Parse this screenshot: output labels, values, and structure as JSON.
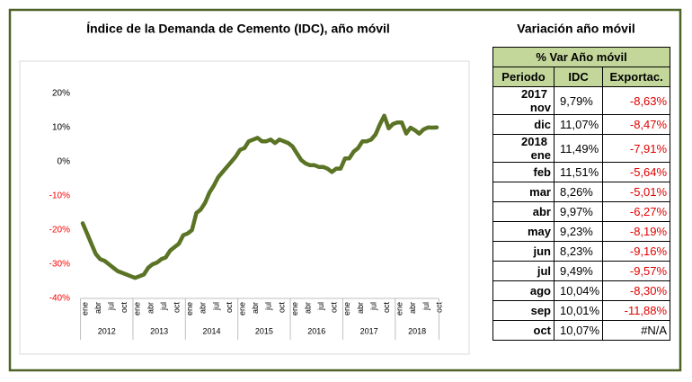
{
  "chart_data": {
    "type": "line",
    "title": "Índice de la Demanda de Cemento (IDC), año móvil",
    "categories": [
      "ene",
      null,
      null,
      "abr",
      null,
      null,
      "jul",
      null,
      null,
      "oct",
      null,
      null,
      "ene",
      null,
      null,
      "abr",
      null,
      null,
      "jul",
      null,
      null,
      "oct",
      null,
      null,
      "ene",
      null,
      null,
      "abr",
      null,
      null,
      "jul",
      null,
      null,
      "oct",
      null,
      null,
      "ene",
      null,
      null,
      "abr",
      null,
      null,
      "jul",
      null,
      null,
      "oct",
      null,
      null,
      "ene",
      null,
      null,
      "abr",
      null,
      null,
      "jul",
      null,
      null,
      "oct",
      null,
      null,
      "ene",
      null,
      null,
      "abr",
      null,
      null,
      "jul",
      null,
      null,
      "oct",
      null,
      null,
      "ene",
      null,
      null,
      "abr",
      null,
      null,
      "jul",
      null,
      null,
      "oct"
    ],
    "years": [
      "2012",
      "2013",
      "2014",
      "2015",
      "2016",
      "2017",
      "2018"
    ],
    "values": [
      -18,
      -21,
      -24,
      -27,
      -28.5,
      -29,
      -30,
      -31,
      -32,
      -32.5,
      -33,
      -33.5,
      -34,
      -33.5,
      -33,
      -31,
      -30,
      -29.5,
      -28.5,
      -28,
      -26,
      -25,
      -24,
      -21.5,
      -21,
      -20,
      -15,
      -14,
      -12,
      -9,
      -7,
      -4.5,
      -3,
      -1.5,
      0,
      1.5,
      3.5,
      4,
      6,
      6.5,
      7,
      6,
      6,
      6.5,
      5.5,
      6.5,
      6,
      5.5,
      4.5,
      2.5,
      0.5,
      -0.5,
      -1,
      -1,
      -1.5,
      -1.5,
      -2,
      -3,
      -2,
      -2,
      1,
      1,
      3,
      4,
      6,
      6,
      6.5,
      8,
      11,
      13.5,
      9.79,
      11.07,
      11.49,
      11.51,
      8.26,
      9.97,
      9.23,
      8.23,
      9.49,
      10.04,
      10.01,
      10.07
    ],
    "color": "#5a7324",
    "negative_tick_color": "#ff0000",
    "ylim": [
      -40,
      20
    ],
    "yticks": [
      {
        "value": -40,
        "label": "-40%"
      },
      {
        "value": -30,
        "label": "-30%"
      },
      {
        "value": -20,
        "label": "-20%"
      },
      {
        "value": -10,
        "label": "-10%"
      },
      {
        "value": 0,
        "label": "0%"
      },
      {
        "value": 10,
        "label": "10%"
      },
      {
        "value": 20,
        "label": "20%"
      }
    ]
  },
  "table": {
    "title": "Variación año móvil",
    "header": "% Var Año móvil",
    "columns": [
      "Periodo",
      "IDC",
      "Exportac."
    ],
    "negative_color": "#e00000",
    "rows": [
      {
        "year": "2017",
        "cells": [
          "nov",
          "9,79%",
          "-8,63%"
        ]
      },
      {
        "cells": [
          "dic",
          "11,07%",
          "-8,47%"
        ]
      },
      {
        "year": "2018",
        "cells": [
          "ene",
          "11,49%",
          "-7,91%"
        ]
      },
      {
        "cells": [
          "feb",
          "11,51%",
          "-5,64%"
        ]
      },
      {
        "cells": [
          "mar",
          "8,26%",
          "-5,01%"
        ]
      },
      {
        "cells": [
          "abr",
          "9,97%",
          "-6,27%"
        ]
      },
      {
        "cells": [
          "may",
          "9,23%",
          "-8,19%"
        ]
      },
      {
        "cells": [
          "jun",
          "8,23%",
          "-9,16%"
        ]
      },
      {
        "cells": [
          "jul",
          "9,49%",
          "-9,57%"
        ]
      },
      {
        "cells": [
          "ago",
          "10,04%",
          "-8,30%"
        ]
      },
      {
        "cells": [
          "sep",
          "10,01%",
          "-11,88%"
        ]
      },
      {
        "cells": [
          "oct",
          "10,07%",
          "#N/A"
        ]
      }
    ]
  }
}
